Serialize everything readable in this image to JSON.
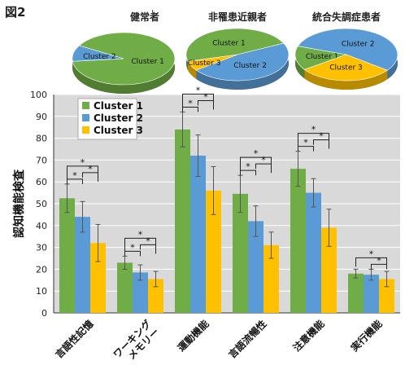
{
  "figure_label": "図2",
  "pies": [
    {
      "title": "健常者",
      "slices": [
        {
          "label": "Cluster 1",
          "value": 90
        },
        {
          "label": "Cluster 2",
          "value": 10
        }
      ]
    },
    {
      "title": "非罹患近親者",
      "slices": [
        {
          "label": "Cluster 1",
          "value": 47
        },
        {
          "label": "Cluster 2",
          "value": 47
        },
        {
          "label": "Cluster 3",
          "value": 6
        }
      ]
    },
    {
      "title": "統合失調症患者",
      "slices": [
        {
          "label": "Cluster 1",
          "value": 15
        },
        {
          "label": "Cluster 2",
          "value": 55
        },
        {
          "label": "Cluster 3",
          "value": 30
        }
      ]
    }
  ],
  "colors": {
    "cluster1": "#70ad47",
    "cluster2": "#5b9bd5",
    "cluster3": "#ffc000",
    "plot_bg": "#d9d9d9"
  },
  "chart_data": {
    "type": "bar",
    "ylabel": "認知機能検査",
    "ylim": [
      0,
      100
    ],
    "yticks": [
      0,
      10,
      20,
      30,
      40,
      50,
      60,
      70,
      80,
      90,
      100
    ],
    "categories": [
      "言語性記憶",
      "ワーキング\nメモリー",
      "運動機能",
      "言語流暢性",
      "注意機能",
      "実行機能"
    ],
    "legend_position": "top-left",
    "series": [
      {
        "name": "Cluster 1",
        "values": [
          52.5,
          23,
          84,
          54.5,
          66,
          18
        ],
        "errors": [
          6.5,
          3,
          8,
          8.5,
          8,
          2
        ]
      },
      {
        "name": "Cluster 2",
        "values": [
          44,
          18.5,
          72,
          42,
          55,
          17.5
        ],
        "errors": [
          7,
          3.5,
          9.5,
          7,
          6.5,
          2.5
        ]
      },
      {
        "name": "Cluster 3",
        "values": [
          32,
          15.5,
          56,
          31,
          39,
          15.5
        ],
        "errors": [
          8.5,
          3.5,
          11,
          6,
          8.5,
          3.5
        ]
      }
    ],
    "significance": [
      {
        "category": 0,
        "pairs": [
          [
            0,
            1
          ],
          [
            1,
            2
          ],
          [
            0,
            2
          ]
        ],
        "marker": "*"
      },
      {
        "category": 1,
        "pairs": [
          [
            0,
            1
          ],
          [
            1,
            2
          ],
          [
            0,
            2
          ]
        ],
        "marker": "*"
      },
      {
        "category": 2,
        "pairs": [
          [
            0,
            1
          ],
          [
            1,
            2
          ],
          [
            0,
            2
          ]
        ],
        "marker": "*"
      },
      {
        "category": 3,
        "pairs": [
          [
            0,
            1
          ],
          [
            1,
            2
          ],
          [
            0,
            2
          ]
        ],
        "marker": "*"
      },
      {
        "category": 4,
        "pairs": [
          [
            0,
            1
          ],
          [
            1,
            2
          ],
          [
            0,
            2
          ]
        ],
        "marker": "*"
      },
      {
        "category": 5,
        "pairs": [
          [
            1,
            2
          ],
          [
            0,
            2
          ]
        ],
        "marker": "*"
      }
    ]
  }
}
